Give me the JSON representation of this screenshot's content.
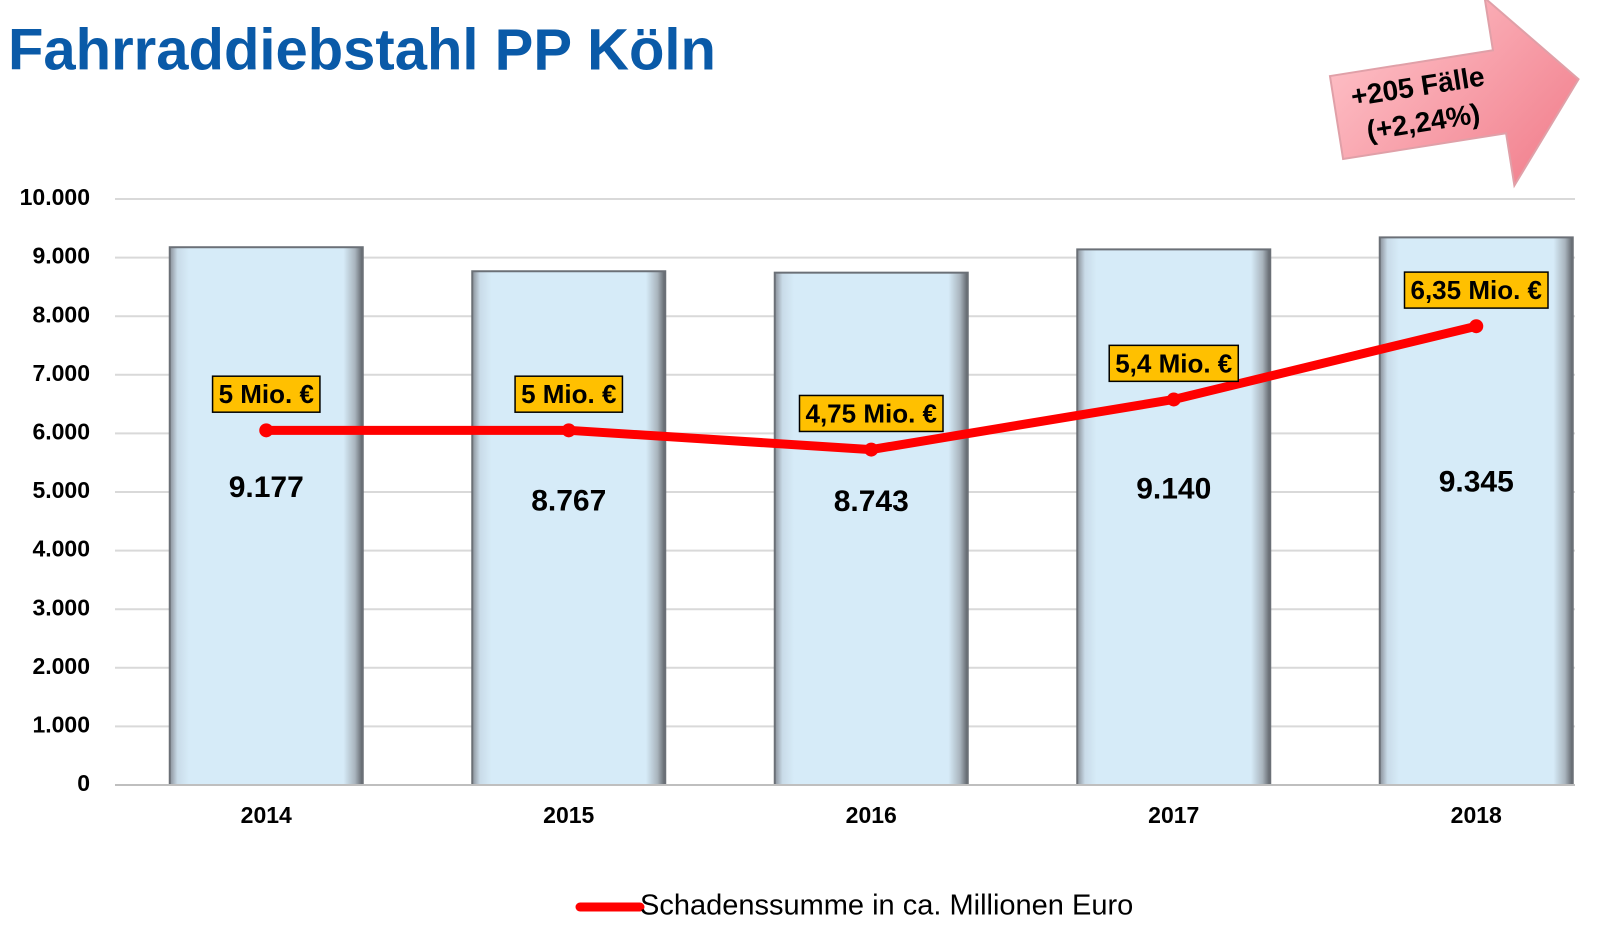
{
  "chart_data": {
    "type": "bar",
    "title": "Fahrraddiebstahl PP Köln",
    "annotation": [
      "+205 Fälle",
      "(+2,24%)"
    ],
    "categories": [
      "2014",
      "2015",
      "2016",
      "2017",
      "2018"
    ],
    "ylim": [
      0,
      10000
    ],
    "yticks": [
      0,
      {
        "value": 1000,
        "label": "1.000"
      },
      {
        "value": 2000,
        "label": "2.000"
      },
      {
        "value": 3000,
        "label": "3.000"
      },
      {
        "value": 4000,
        "label": "4.000"
      },
      {
        "value": 5000,
        "label": "5.000"
      },
      {
        "value": 6000,
        "label": "6.000"
      },
      {
        "value": 7000,
        "label": "7.000"
      },
      {
        "value": 8000,
        "label": "8.000"
      },
      {
        "value": 9000,
        "label": "9.000"
      },
      {
        "value": 10000,
        "label": "10.000"
      }
    ],
    "y2lim": [
      0.4,
      8.0
    ],
    "grid": true,
    "legend": "bottom",
    "series": [
      {
        "type": "bar",
        "color": "#d6ebf8",
        "values": [
          9177,
          8767,
          8743,
          9140,
          9345
        ],
        "value_labels": [
          "9.177",
          "8.767",
          "8.743",
          "9.140",
          "9.345"
        ]
      },
      {
        "type": "line",
        "name": "Schadenssumme in ca. Millionen Euro",
        "color": "#ff0000",
        "axis": "y2",
        "values": [
          5,
          5,
          4.75,
          5.4,
          6.35
        ],
        "value_labels": [
          "5 Mio. €",
          "5 Mio. €",
          "4,75 Mio. €",
          "5,4 Mio. €",
          "6,35 Mio. €"
        ]
      }
    ]
  }
}
